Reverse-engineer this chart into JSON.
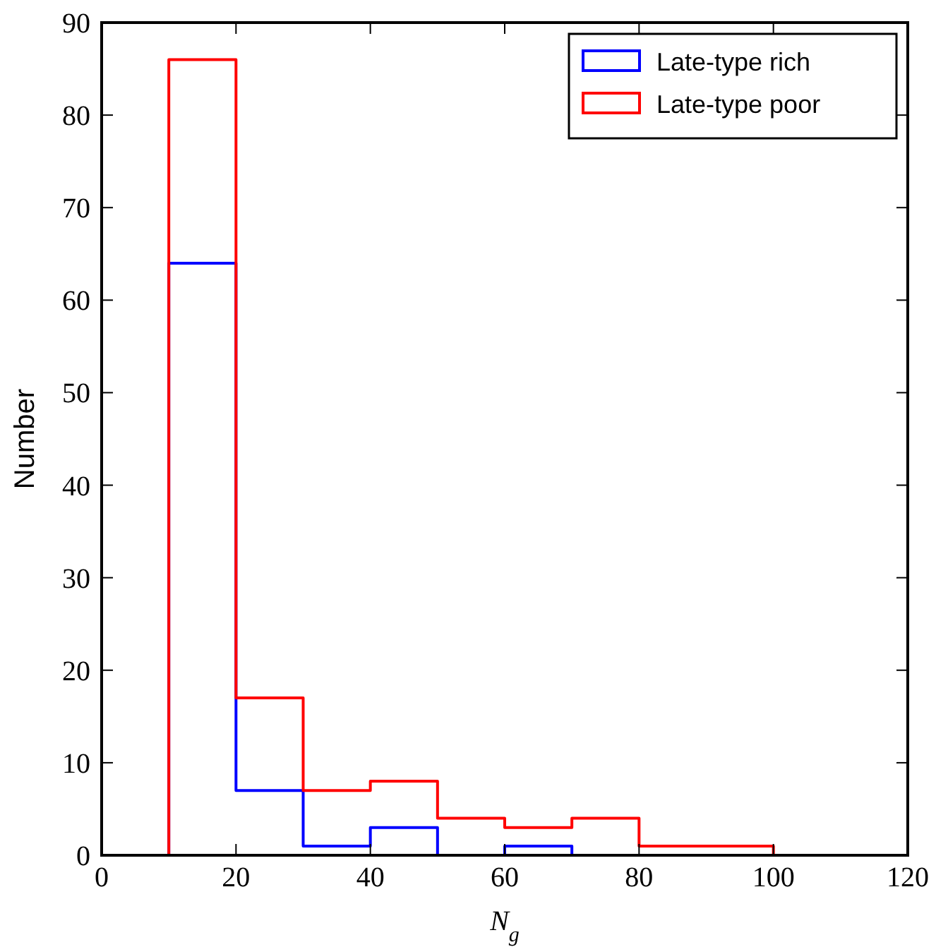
{
  "chart_data": {
    "type": "histogram",
    "xlabel": "N$_{g}$",
    "ylabel": "Number",
    "bins": [
      10,
      20,
      30,
      40,
      50,
      60,
      70,
      80,
      90,
      100,
      110
    ],
    "series": [
      {
        "name": "Late-type rich",
        "color": "#0000ff",
        "values": [
          64,
          7,
          1,
          3,
          0,
          1,
          0,
          0,
          0,
          0
        ]
      },
      {
        "name": "Late-type poor",
        "color": "#ff0000",
        "values": [
          86,
          17,
          7,
          8,
          4,
          3,
          4,
          1,
          1,
          0
        ]
      }
    ],
    "xlim": [
      0,
      120
    ],
    "xticks": [
      0,
      20,
      40,
      60,
      80,
      100,
      120
    ],
    "ylim": [
      0,
      90
    ],
    "yticks": [
      0,
      10,
      20,
      30,
      40,
      50,
      60,
      70,
      80,
      90
    ],
    "grid": false,
    "legend": "top right"
  }
}
